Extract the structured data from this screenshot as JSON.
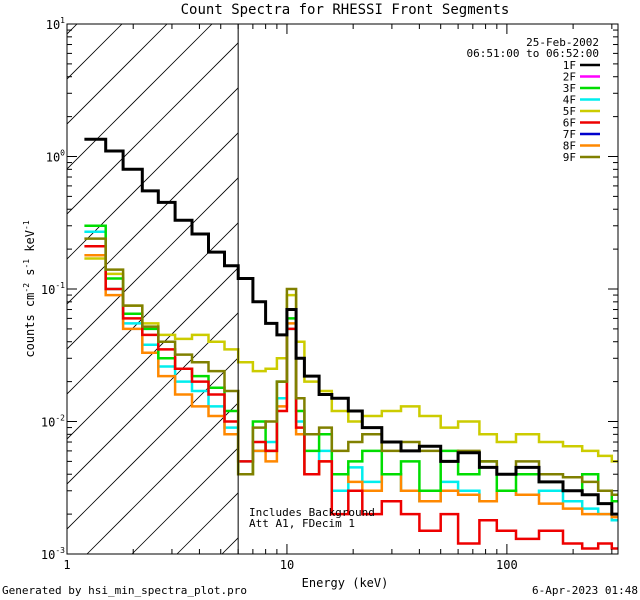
{
  "chart_data": {
    "type": "line",
    "title": "Count Spectra for RHESSI Front Segments",
    "xlabel": "Energy (keV)",
    "ylabel_parts": [
      "counts cm",
      "-2",
      " s",
      "-1",
      " keV",
      "-1"
    ],
    "x_scale": "log",
    "y_scale": "log",
    "xlim": [
      1,
      320
    ],
    "ylim": [
      0.001,
      10
    ],
    "x_ticks": [
      {
        "value": 1,
        "label": "1"
      },
      {
        "value": 10,
        "label": "10"
      },
      {
        "value": 100,
        "label": "100"
      }
    ],
    "y_ticks": [
      {
        "value": 0.001,
        "base": "10",
        "exp": "-3"
      },
      {
        "value": 0.01,
        "base": "10",
        "exp": "-2"
      },
      {
        "value": 0.1,
        "base": "10",
        "exp": "-1"
      },
      {
        "value": 1,
        "base": "10",
        "exp": "0"
      },
      {
        "value": 10,
        "base": "10",
        "exp": "1"
      }
    ],
    "hatched_region_max_energy": 6,
    "annotation_date": "25-Feb-2002",
    "annotation_time": "06:51:00 to 06:52:00",
    "annotation_note1": "Includes Background",
    "annotation_note2": "Att A1, FDecim 1",
    "series": [
      {
        "name": "1F",
        "color": "#000000",
        "x": [
          1.2,
          1.5,
          1.8,
          2.2,
          2.6,
          3.1,
          3.7,
          4.4,
          5.2,
          6.0,
          7.0,
          8.0,
          9.0,
          10.0,
          11.0,
          12.0,
          14.0,
          16.0,
          19.0,
          22.0,
          27.0,
          33.0,
          40.0,
          50.0,
          60.0,
          75.0,
          90.0,
          110.0,
          140.0,
          180.0,
          220.0,
          260.0,
          300.0
        ],
        "y": [
          1.35,
          1.1,
          0.8,
          0.55,
          0.45,
          0.33,
          0.26,
          0.19,
          0.15,
          0.12,
          0.08,
          0.055,
          0.045,
          0.07,
          0.03,
          0.022,
          0.016,
          0.015,
          0.012,
          0.009,
          0.007,
          0.006,
          0.0065,
          0.005,
          0.0058,
          0.0045,
          0.004,
          0.0045,
          0.0035,
          0.003,
          0.0028,
          0.0024,
          0.002
        ]
      },
      {
        "name": "2F",
        "color": "#ff00ff",
        "x": [],
        "y": []
      },
      {
        "name": "3F",
        "color": "#00dd00",
        "x": [
          1.2,
          1.5,
          1.8,
          2.2,
          2.6,
          3.1,
          3.7,
          4.4,
          5.2,
          6.0,
          7.0,
          8.0,
          9.0,
          10.0,
          11.0,
          12.0,
          14.0,
          16.0,
          19.0,
          22.0,
          27.0,
          33.0,
          40.0,
          50.0,
          60.0,
          75.0,
          90.0,
          110.0,
          140.0,
          180.0,
          220.0,
          260.0,
          300.0
        ],
        "y": [
          0.3,
          0.12,
          0.065,
          0.05,
          0.03,
          0.025,
          0.022,
          0.018,
          0.012,
          0.004,
          0.01,
          0.006,
          0.02,
          0.06,
          0.012,
          0.006,
          0.008,
          0.004,
          0.005,
          0.006,
          0.004,
          0.005,
          0.003,
          0.006,
          0.004,
          0.005,
          0.003,
          0.004,
          0.0035,
          0.003,
          0.004,
          0.003,
          0.0025
        ]
      },
      {
        "name": "4F",
        "color": "#00eeee",
        "x": [
          1.2,
          1.5,
          1.8,
          2.2,
          2.6,
          3.1,
          3.7,
          4.4,
          5.2,
          6.0,
          7.0,
          8.0,
          9.0,
          10.0,
          11.0,
          12.0,
          14.0,
          16.0,
          19.0,
          22.0,
          27.0,
          33.0,
          40.0,
          50.0,
          60.0,
          75.0,
          90.0,
          110.0,
          140.0,
          180.0,
          220.0,
          260.0,
          300.0
        ],
        "y": [
          0.27,
          0.1,
          0.055,
          0.038,
          0.026,
          0.02,
          0.017,
          0.013,
          0.009,
          0.005,
          0.006,
          0.007,
          0.015,
          0.05,
          0.01,
          0.004,
          0.006,
          0.003,
          0.0045,
          0.0035,
          0.004,
          0.003,
          0.0025,
          0.0035,
          0.003,
          0.0025,
          0.003,
          0.0028,
          0.003,
          0.0025,
          0.0022,
          0.002,
          0.0018
        ]
      },
      {
        "name": "5F",
        "color": "#cccc00",
        "x": [
          1.2,
          1.5,
          1.8,
          2.2,
          2.6,
          3.1,
          3.7,
          4.4,
          5.2,
          6.0,
          7.0,
          8.0,
          9.0,
          10.0,
          11.0,
          12.0,
          14.0,
          16.0,
          19.0,
          22.0,
          27.0,
          33.0,
          40.0,
          50.0,
          60.0,
          75.0,
          90.0,
          110.0,
          140.0,
          180.0,
          220.0,
          260.0,
          300.0
        ],
        "y": [
          0.17,
          0.13,
          0.075,
          0.055,
          0.045,
          0.042,
          0.045,
          0.04,
          0.035,
          0.028,
          0.024,
          0.025,
          0.03,
          0.09,
          0.04,
          0.02,
          0.017,
          0.012,
          0.01,
          0.011,
          0.012,
          0.013,
          0.011,
          0.009,
          0.01,
          0.008,
          0.007,
          0.008,
          0.007,
          0.0065,
          0.006,
          0.0055,
          0.005
        ]
      },
      {
        "name": "6F",
        "color": "#ee0000",
        "x": [
          1.2,
          1.5,
          1.8,
          2.2,
          2.6,
          3.1,
          3.7,
          4.4,
          5.2,
          6.0,
          7.0,
          8.0,
          9.0,
          10.0,
          11.0,
          12.0,
          14.0,
          16.0,
          19.0,
          22.0,
          27.0,
          33.0,
          40.0,
          50.0,
          60.0,
          75.0,
          90.0,
          110.0,
          140.0,
          180.0,
          220.0,
          260.0,
          300.0
        ],
        "y": [
          0.21,
          0.1,
          0.06,
          0.045,
          0.035,
          0.025,
          0.02,
          0.016,
          0.01,
          0.005,
          0.007,
          0.006,
          0.012,
          0.05,
          0.009,
          0.004,
          0.005,
          0.002,
          0.003,
          0.002,
          0.0025,
          0.002,
          0.0015,
          0.002,
          0.0012,
          0.0018,
          0.0015,
          0.0013,
          0.0015,
          0.0012,
          0.0011,
          0.0012,
          0.0011
        ]
      },
      {
        "name": "7F",
        "color": "#0000cc",
        "x": [],
        "y": []
      },
      {
        "name": "8F",
        "color": "#ff8800",
        "x": [
          1.2,
          1.5,
          1.8,
          2.2,
          2.6,
          3.1,
          3.7,
          4.4,
          5.2,
          6.0,
          7.0,
          8.0,
          9.0,
          10.0,
          11.0,
          12.0,
          14.0,
          16.0,
          19.0,
          22.0,
          27.0,
          33.0,
          40.0,
          50.0,
          60.0,
          75.0,
          90.0,
          110.0,
          140.0,
          180.0,
          220.0,
          260.0,
          300.0
        ],
        "y": [
          0.18,
          0.09,
          0.05,
          0.033,
          0.022,
          0.016,
          0.013,
          0.011,
          0.008,
          0.004,
          0.006,
          0.005,
          0.013,
          0.055,
          0.008,
          0.004,
          0.005,
          0.004,
          0.0035,
          0.003,
          0.004,
          0.003,
          0.0025,
          0.003,
          0.0028,
          0.0025,
          0.003,
          0.0028,
          0.0024,
          0.0022,
          0.002,
          0.002,
          0.0019
        ]
      },
      {
        "name": "9F",
        "color": "#808000",
        "x": [
          1.2,
          1.5,
          1.8,
          2.2,
          2.6,
          3.1,
          3.7,
          4.4,
          5.2,
          6.0,
          7.0,
          8.0,
          9.0,
          10.0,
          11.0,
          12.0,
          14.0,
          16.0,
          19.0,
          22.0,
          27.0,
          33.0,
          40.0,
          50.0,
          60.0,
          75.0,
          90.0,
          110.0,
          140.0,
          180.0,
          220.0,
          260.0,
          300.0
        ],
        "y": [
          0.24,
          0.14,
          0.075,
          0.052,
          0.04,
          0.032,
          0.028,
          0.024,
          0.017,
          0.004,
          0.009,
          0.01,
          0.02,
          0.1,
          0.015,
          0.008,
          0.009,
          0.006,
          0.007,
          0.008,
          0.006,
          0.007,
          0.006,
          0.005,
          0.006,
          0.005,
          0.004,
          0.005,
          0.004,
          0.0038,
          0.0035,
          0.003,
          0.0028
        ]
      }
    ]
  },
  "footer": {
    "left": "Generated by hsi_min_spectra_plot.pro",
    "right": "6-Apr-2023 01:48"
  }
}
